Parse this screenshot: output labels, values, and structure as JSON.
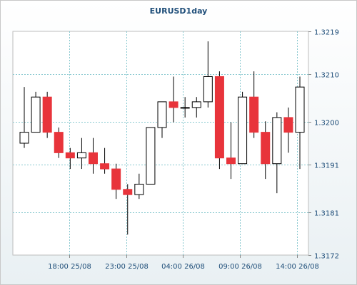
{
  "chart_data": {
    "type": "candlestick",
    "title": "EURUSD1day",
    "xlabel": "",
    "ylabel": "",
    "ylim": [
      1.3172,
      1.3219
    ],
    "yticks": [
      "1.3219",
      "1.3210",
      "1.3200",
      "1.3191",
      "1.3181",
      "1.3172"
    ],
    "xticks": [
      "18:00 25/08",
      "23:00 25/08",
      "04:00 26/08",
      "09:00 26/08",
      "14:00 26/08"
    ],
    "grid": true,
    "colors": {
      "up": "#ffffff",
      "down": "#e8343b",
      "grid": "#88c8cf",
      "text": "#1f4e79"
    },
    "candles": [
      {
        "o": 1.31955,
        "h": 1.32073,
        "l": 1.31945,
        "c": 1.31978
      },
      {
        "o": 1.31978,
        "h": 1.32063,
        "l": 1.31978,
        "c": 1.32052
      },
      {
        "o": 1.32052,
        "h": 1.32063,
        "l": 1.31966,
        "c": 1.31978
      },
      {
        "o": 1.31978,
        "h": 1.31988,
        "l": 1.31924,
        "c": 1.31935
      },
      {
        "o": 1.31935,
        "h": 1.31945,
        "l": 1.31901,
        "c": 1.31924
      },
      {
        "o": 1.31924,
        "h": 1.31966,
        "l": 1.31901,
        "c": 1.31935
      },
      {
        "o": 1.31935,
        "h": 1.31966,
        "l": 1.31891,
        "c": 1.31912
      },
      {
        "o": 1.31912,
        "h": 1.31945,
        "l": 1.31891,
        "c": 1.31901
      },
      {
        "o": 1.31901,
        "h": 1.31912,
        "l": 1.31838,
        "c": 1.31858
      },
      {
        "o": 1.31858,
        "h": 1.31869,
        "l": 1.31763,
        "c": 1.31847
      },
      {
        "o": 1.31847,
        "h": 1.31891,
        "l": 1.31838,
        "c": 1.31869
      },
      {
        "o": 1.31869,
        "h": 1.31988,
        "l": 1.31869,
        "c": 1.31988
      },
      {
        "o": 1.31988,
        "h": 1.32042,
        "l": 1.31966,
        "c": 1.32042
      },
      {
        "o": 1.32042,
        "h": 1.32095,
        "l": 1.31999,
        "c": 1.3203
      },
      {
        "o": 1.3203,
        "h": 1.32052,
        "l": 1.32009,
        "c": 1.3203
      },
      {
        "o": 1.3203,
        "h": 1.32052,
        "l": 1.32009,
        "c": 1.32042
      },
      {
        "o": 1.32042,
        "h": 1.32169,
        "l": 1.3203,
        "c": 1.32095
      },
      {
        "o": 1.32095,
        "h": 1.32106,
        "l": 1.31901,
        "c": 1.31924
      },
      {
        "o": 1.31924,
        "h": 1.31999,
        "l": 1.3188,
        "c": 1.31912
      },
      {
        "o": 1.31912,
        "h": 1.32063,
        "l": 1.31912,
        "c": 1.32052
      },
      {
        "o": 1.32052,
        "h": 1.32106,
        "l": 1.31966,
        "c": 1.31978
      },
      {
        "o": 1.31978,
        "h": 1.32001,
        "l": 1.3188,
        "c": 1.31912
      },
      {
        "o": 1.31912,
        "h": 1.3202,
        "l": 1.3185,
        "c": 1.32009
      },
      {
        "o": 1.32009,
        "h": 1.3203,
        "l": 1.31935,
        "c": 1.31978
      },
      {
        "o": 1.31978,
        "h": 1.32095,
        "l": 1.31901,
        "c": 1.32073
      }
    ]
  }
}
